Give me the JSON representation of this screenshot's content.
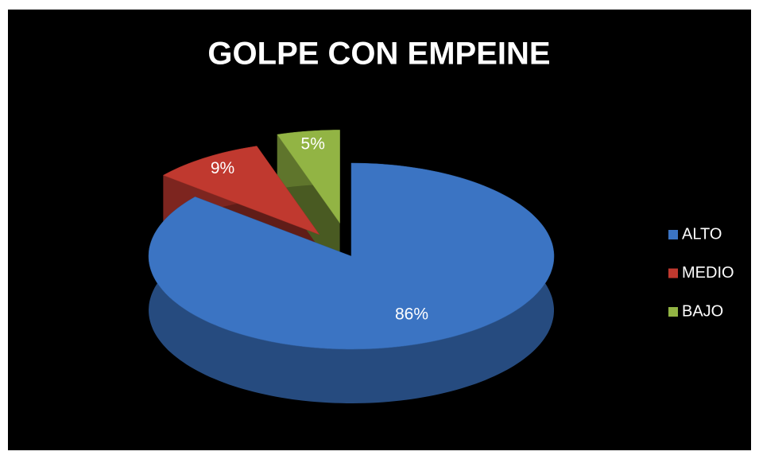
{
  "chart_data": {
    "type": "pie",
    "title": "GOLPE CON EMPEINE",
    "categories": [
      "ALTO",
      "MEDIO",
      "BAJO"
    ],
    "values": [
      86,
      9,
      5
    ],
    "value_labels": [
      "86%",
      "9%",
      "5%"
    ],
    "colors": [
      "#3b74c3",
      "#c0392f",
      "#92b444"
    ],
    "legend": "right"
  }
}
